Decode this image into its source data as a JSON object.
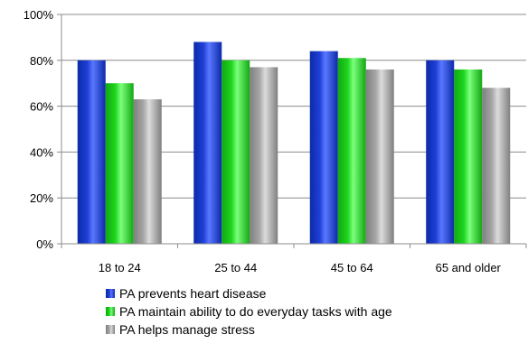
{
  "chart_data": {
    "type": "bar",
    "categories": [
      "18 to 24",
      "25 to 44",
      "45 to 64",
      "65 and older"
    ],
    "series": [
      {
        "name": "PA prevents heart disease",
        "values": [
          80,
          88,
          84,
          80
        ],
        "color": "#1f3fd6"
      },
      {
        "name": "PA maintain  ability to do everyday tasks with age",
        "values": [
          70,
          80,
          81,
          76
        ],
        "color": "#1fd61f"
      },
      {
        "name": "PA helps manage stress",
        "values": [
          63,
          77,
          76,
          68
        ],
        "color": "#a6a6a6"
      }
    ],
    "y_ticks": [
      "0%",
      "20%",
      "40%",
      "60%",
      "80%",
      "100%"
    ],
    "ylim": [
      0,
      100
    ],
    "grid": true,
    "legend_position": "bottom-left"
  }
}
